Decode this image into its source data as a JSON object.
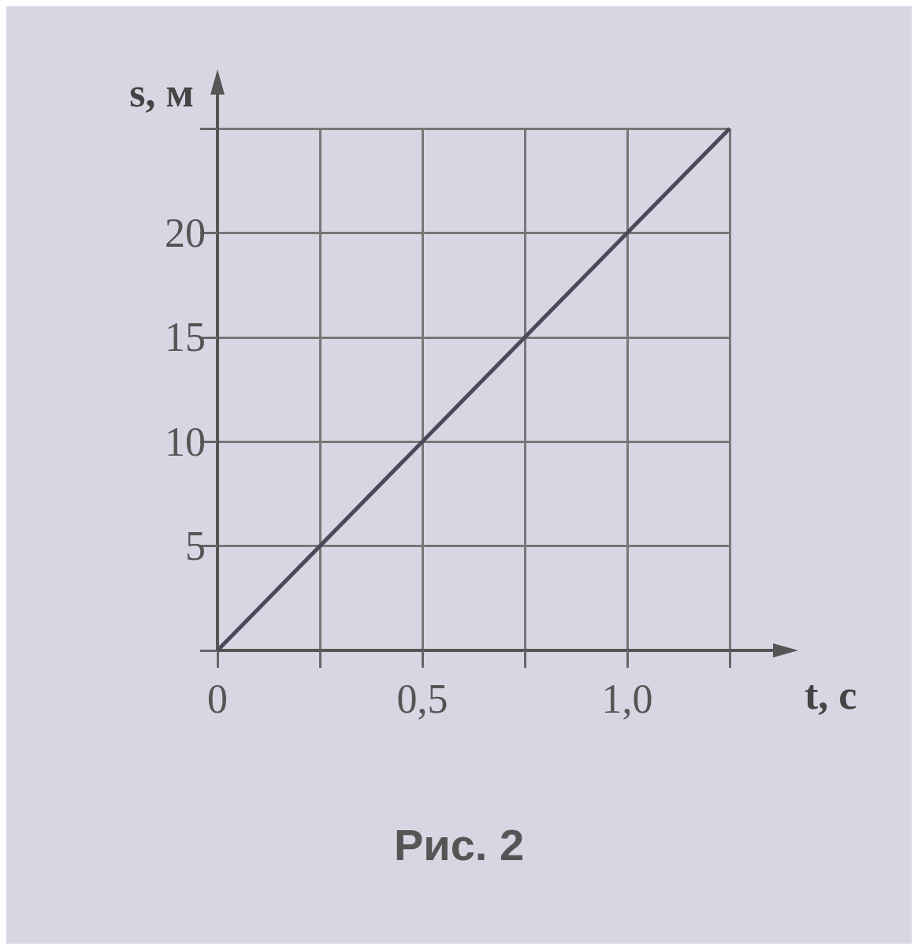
{
  "chart_data": {
    "type": "line",
    "xlabel": "t, с",
    "ylabel": "s, м",
    "annotations": [
      "Рис. 2"
    ],
    "x": [
      0,
      1.25
    ],
    "series": [
      {
        "color": "#4a4a5a",
        "values": [
          0,
          25
        ]
      }
    ],
    "xlim": [
      0,
      1.25
    ],
    "ylim": [
      0,
      25
    ],
    "xticks": [
      {
        "value": 0,
        "label": "0"
      },
      {
        "value": 0.25,
        "label": null
      },
      {
        "value": 0.5,
        "label": "0,5"
      },
      {
        "value": 0.75,
        "label": null
      },
      {
        "value": 1,
        "label": "1,0"
      },
      {
        "value": 1.25,
        "label": null
      }
    ],
    "yticks": [
      {
        "value": 0,
        "label": null
      },
      5,
      10,
      15,
      20,
      {
        "value": 25,
        "label": null
      }
    ],
    "grid": true,
    "marker": "none",
    "line_style": "solid"
  }
}
